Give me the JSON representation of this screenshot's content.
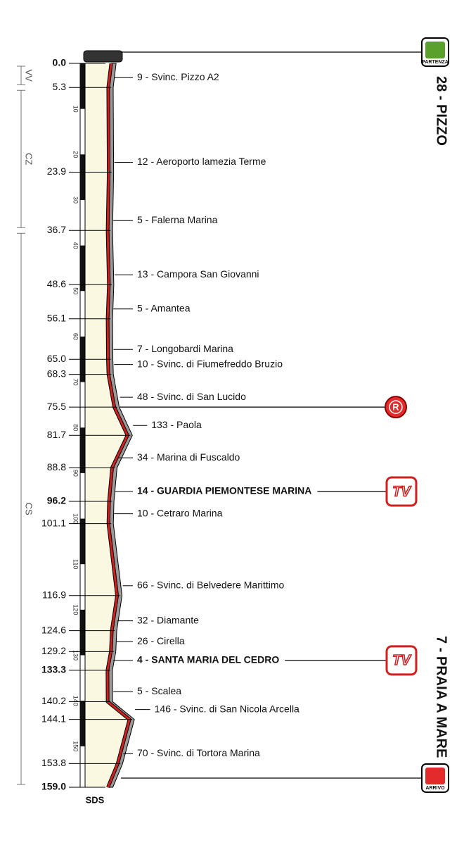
{
  "start": {
    "label": "28 - PIZZO",
    "icon": "PARTENZA"
  },
  "finish": {
    "label": "7 - PRAIA A MARE",
    "icon": "ARRIVO"
  },
  "total": "159.0",
  "provinces": [
    {
      "label": "VV",
      "from": "0.0",
      "to": "5.3"
    },
    {
      "label": "CZ",
      "from": "5.3",
      "to": "36.7"
    },
    {
      "label": "CS",
      "from": "36.7",
      "to": "159.0"
    }
  ],
  "scale": [
    10,
    20,
    30,
    40,
    50,
    60,
    70,
    80,
    90,
    100,
    110,
    120,
    130,
    140,
    150
  ],
  "footer": "SDS",
  "waypoints": [
    {
      "km": "5.3",
      "label": "9 - Svinc. Pizzo A2"
    },
    {
      "km": "23.9",
      "label": "12 - Aeroporto lamezia Terme"
    },
    {
      "km": "36.7",
      "label": "5 - Falerna Marina"
    },
    {
      "km": "48.6",
      "label": "13 - Campora San Giovanni"
    },
    {
      "km": "56.1",
      "label": "5 - Amantea"
    },
    {
      "km": "65.0",
      "label": "7 - Longobardi Marina"
    },
    {
      "km": "68.3",
      "label": "10 - Svinc. di Fiumefreddo Bruzio"
    },
    {
      "km": "75.5",
      "label": "48 - Svinc. di San Lucido",
      "icon": "R"
    },
    {
      "km": "81.7",
      "label": "133 - Paola"
    },
    {
      "km": "88.8",
      "label": "34 - Marina di Fuscaldo"
    },
    {
      "km": "96.2",
      "label": "14 - GUARDIA PIEMONTESE MARINA",
      "bold": true,
      "icon": "TV"
    },
    {
      "km": "101.1",
      "label": "10 - Cetraro Marina"
    },
    {
      "km": "116.9",
      "label": "66 - Svinc. di Belvedere Marittimo"
    },
    {
      "km": "124.6",
      "label": "32 - Diamante"
    },
    {
      "km": "129.2",
      "label": "26 - Cirella"
    },
    {
      "km": "133.3",
      "label": "4 - SANTA MARIA DEL CEDRO",
      "bold": true,
      "icon": "TV"
    },
    {
      "km": "140.2",
      "label": "5 - Scalea"
    },
    {
      "km": "144.1",
      "label": "146 - Svinc. di San Nicola Arcella"
    },
    {
      "km": "153.8",
      "label": "70 - Svinc. di Tortora Marina"
    }
  ],
  "start_km": "0.0"
}
